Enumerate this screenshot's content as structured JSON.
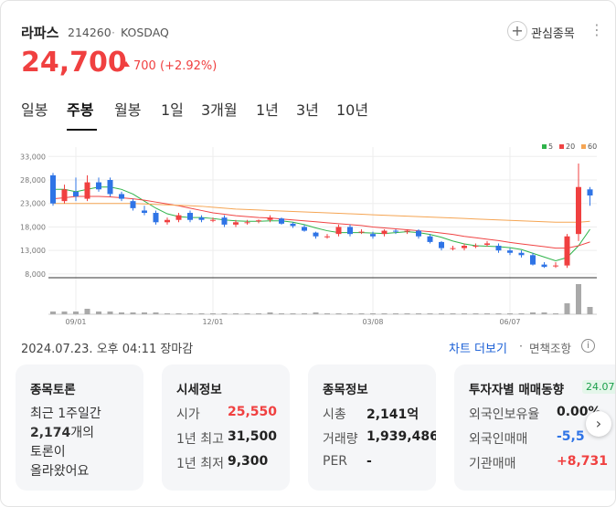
{
  "header": {
    "name": "라파스",
    "code": "214260",
    "market": "KOSDAQ",
    "watch": "관심종목",
    "price": "24,700",
    "change": "700",
    "change_pct": "(+2.92%)"
  },
  "tabs": [
    "일봉",
    "주봉",
    "월봉",
    "1일",
    "3개월",
    "1년",
    "3년",
    "10년"
  ],
  "chart_data": {
    "type": "candlestick",
    "up_color": "#f04040",
    "down_color": "#2f74e6",
    "grid": true,
    "ylim": [
      7200,
      35000
    ],
    "yticks": [
      {
        "value": 33000,
        "label": "33,000"
      },
      {
        "value": 28000,
        "label": "28,000"
      },
      {
        "value": 23000,
        "label": "23,000"
      },
      {
        "value": 18000,
        "label": "18,000"
      },
      {
        "value": 13000,
        "label": "13,000"
      },
      {
        "value": 8000,
        "label": "8,000"
      }
    ],
    "categories": [
      null,
      null,
      "09/01",
      null,
      null,
      null,
      null,
      null,
      null,
      null,
      null,
      null,
      null,
      null,
      "12/01",
      null,
      null,
      null,
      null,
      null,
      null,
      null,
      null,
      null,
      null,
      null,
      null,
      null,
      "03/08",
      null,
      null,
      null,
      null,
      null,
      null,
      null,
      null,
      null,
      null,
      null,
      "06/07",
      null,
      null,
      null,
      null,
      null,
      null,
      null
    ],
    "open": [
      29000,
      23500,
      25500,
      24000,
      27500,
      28000,
      25000,
      23500,
      21500,
      21000,
      19000,
      19500,
      21000,
      20000,
      19500,
      20000,
      18500,
      19000,
      19200,
      19500,
      19800,
      18700,
      18000,
      16800,
      16000,
      16500,
      18000,
      17000,
      16500,
      16500,
      17200,
      17000,
      17200,
      16000,
      14800,
      13500,
      13500,
      14000,
      14200,
      14000,
      13000,
      12500,
      12000,
      10000,
      9800,
      9800,
      16500,
      26000
    ],
    "close": [
      23000,
      26000,
      24500,
      27500,
      26000,
      25000,
      24000,
      22000,
      21000,
      19000,
      19500,
      20500,
      19500,
      19500,
      19500,
      18500,
      19000,
      19000,
      19400,
      20000,
      18700,
      18200,
      17200,
      16000,
      16000,
      18000,
      16500,
      17000,
      16000,
      17200,
      17000,
      17200,
      16000,
      14800,
      13500,
      13500,
      14000,
      14000,
      14500,
      13000,
      12500,
      12000,
      10000,
      9500,
      9800,
      16000,
      26500,
      24700
    ],
    "high": [
      29500,
      27000,
      28500,
      29000,
      28500,
      28500,
      25500,
      24000,
      22500,
      21500,
      20000,
      21000,
      21500,
      20500,
      20000,
      20500,
      19500,
      19500,
      19600,
      20500,
      20000,
      19000,
      18500,
      17000,
      16500,
      18500,
      18500,
      17500,
      17000,
      17500,
      17500,
      17500,
      17500,
      16500,
      15000,
      14000,
      14500,
      14500,
      15000,
      14500,
      13500,
      13000,
      12500,
      10500,
      10500,
      16500,
      31500,
      26500
    ],
    "low": [
      22500,
      23000,
      23500,
      23500,
      25500,
      24500,
      23500,
      21500,
      20500,
      18500,
      18500,
      19000,
      19000,
      19000,
      19000,
      18000,
      18000,
      18500,
      18800,
      19000,
      18500,
      17800,
      17000,
      15500,
      15500,
      16000,
      16000,
      16500,
      15500,
      16000,
      16500,
      16500,
      15500,
      14500,
      13000,
      13000,
      13000,
      13500,
      13800,
      12500,
      12000,
      11500,
      9800,
      9300,
      9300,
      9300,
      15000,
      22500
    ],
    "series": [
      {
        "name": "5",
        "color": "#2fb34a",
        "values": [
          26000,
          26000,
          25500,
          26000,
          26500,
          26500,
          26000,
          25000,
          23500,
          22000,
          20800,
          20200,
          20000,
          20000,
          19800,
          19500,
          19300,
          19200,
          19200,
          19300,
          19300,
          19000,
          18500,
          17800,
          17200,
          16800,
          16800,
          16800,
          16700,
          16600,
          16800,
          17000,
          16800,
          16400,
          15800,
          15000,
          14400,
          14000,
          13900,
          13800,
          13600,
          13200,
          12400,
          11600,
          10800,
          11500,
          14000,
          17500
        ]
      },
      {
        "name": "20",
        "color": "#f04444",
        "values": [
          24000,
          24200,
          24500,
          24500,
          24500,
          24400,
          24200,
          24000,
          23700,
          23300,
          22900,
          22500,
          22000,
          21500,
          21000,
          20700,
          20400,
          20200,
          20000,
          19900,
          19700,
          19500,
          19300,
          19100,
          18900,
          18700,
          18500,
          18300,
          18000,
          17800,
          17600,
          17400,
          17200,
          17000,
          16700,
          16400,
          16000,
          15700,
          15400,
          15100,
          14700,
          14400,
          14100,
          13800,
          13500,
          13500,
          14000,
          14800
        ]
      },
      {
        "name": "60",
        "color": "#f5a553",
        "values": [
          23000,
          23000,
          23000,
          23000,
          23000,
          23000,
          23000,
          23000,
          22900,
          22800,
          22700,
          22600,
          22500,
          22400,
          22200,
          22000,
          21800,
          21700,
          21600,
          21500,
          21400,
          21300,
          21200,
          21100,
          21000,
          20900,
          20800,
          20700,
          20600,
          20500,
          20400,
          20300,
          20200,
          20100,
          20000,
          19900,
          19800,
          19700,
          19600,
          19500,
          19400,
          19300,
          19200,
          19100,
          19000,
          19000,
          19000,
          19200
        ]
      }
    ],
    "volume": [
      180000,
      180000,
      180000,
      360000,
      180000,
      180000,
      120000,
      120000,
      120000,
      120000,
      60000,
      60000,
      60000,
      60000,
      60000,
      60000,
      60000,
      60000,
      60000,
      120000,
      60000,
      60000,
      60000,
      120000,
      60000,
      60000,
      60000,
      60000,
      60000,
      60000,
      60000,
      60000,
      60000,
      60000,
      60000,
      60000,
      60000,
      60000,
      60000,
      60000,
      60000,
      60000,
      120000,
      120000,
      60000,
      720000,
      1980000,
      480000
    ]
  },
  "footer": {
    "timestamp": "2024.07.23. 오후 04:11 장마감",
    "more": "차트 더보기",
    "disclaimer": "면책조항"
  },
  "cards": [
    {
      "title": "종목토론",
      "line1": "최근 1주일간",
      "count": "2,174",
      "line2": "개의",
      "line3": "토론이",
      "line4": "올라왔어요"
    },
    {
      "title": "시세정보",
      "rows": [
        [
          "시가",
          "25,550"
        ],
        [
          "1년 최고",
          "31,500"
        ],
        [
          "1년 최저",
          "9,300"
        ]
      ]
    },
    {
      "title": "종목정보",
      "rows": [
        [
          "시총",
          "2,141억"
        ],
        [
          "거래량",
          "1,939,486"
        ],
        [
          "PER",
          "-"
        ]
      ]
    },
    {
      "title": "투자자별 매매동향",
      "badge": "24.07.",
      "rows": [
        [
          "외국인보유율",
          "0.00%"
        ],
        [
          "외국인매매",
          "-5,5"
        ],
        [
          "기관매매",
          "+8,731"
        ]
      ]
    }
  ]
}
